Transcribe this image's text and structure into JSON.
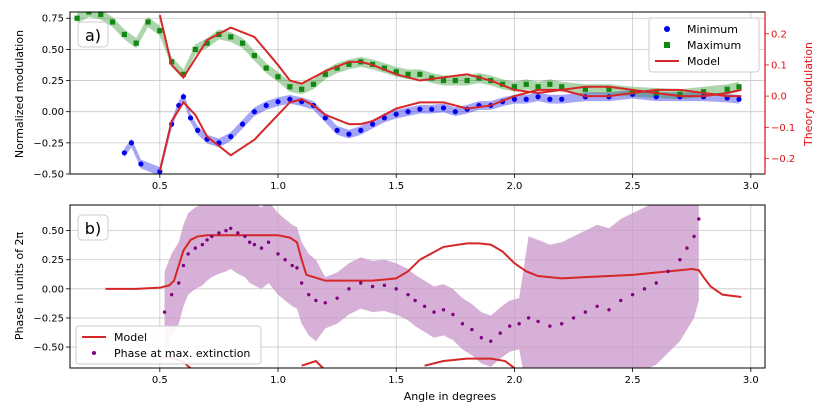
{
  "colors": {
    "minimum": "#0000ee",
    "maximum": "#118811",
    "model": "#d62728",
    "theory_axis": "#dd1111",
    "phase": "#800080",
    "phase_band": "#c896c8",
    "grid": "#c8c8c8"
  },
  "chart_data": [
    {
      "type": "scatter",
      "panel_label": "a)",
      "xlabel": "",
      "ylabel": "Normalized modulation",
      "y2label": "Theory modulation",
      "xlim": [
        0.12,
        3.06
      ],
      "ylim": [
        -0.5,
        0.8
      ],
      "y2lim": [
        -0.25,
        0.27
      ],
      "xticks": [
        "0.5",
        "1.0",
        "1.5",
        "2.0",
        "2.5",
        "3.0"
      ],
      "yticks": [
        "−0.50",
        "−0.25",
        "0.00",
        "0.25",
        "0.50",
        "0.75"
      ],
      "y2ticks": [
        "−0.2",
        "−0.1",
        "0.0",
        "0.1",
        "0.2"
      ],
      "grid": true,
      "legend_position": "top-right",
      "series": [
        {
          "name": "Minimum",
          "marker": "circle",
          "x": [
            0.35,
            0.38,
            0.42,
            0.5,
            0.55,
            0.58,
            0.6,
            0.63,
            0.66,
            0.7,
            0.75,
            0.8,
            0.85,
            0.9,
            0.95,
            1.0,
            1.05,
            1.1,
            1.15,
            1.2,
            1.25,
            1.3,
            1.35,
            1.4,
            1.45,
            1.5,
            1.55,
            1.6,
            1.65,
            1.7,
            1.75,
            1.8,
            1.85,
            1.9,
            1.95,
            2.0,
            2.05,
            2.1,
            2.15,
            2.2,
            2.3,
            2.4,
            2.5,
            2.6,
            2.7,
            2.8,
            2.9,
            2.95
          ],
          "y": [
            -0.33,
            -0.25,
            -0.42,
            -0.48,
            -0.1,
            0.05,
            0.12,
            -0.05,
            -0.15,
            -0.22,
            -0.25,
            -0.2,
            -0.1,
            0.0,
            0.05,
            0.08,
            0.1,
            0.08,
            0.05,
            -0.05,
            -0.15,
            -0.18,
            -0.15,
            -0.1,
            -0.05,
            -0.02,
            0.0,
            0.02,
            0.02,
            0.03,
            0.0,
            0.02,
            0.05,
            0.05,
            0.08,
            0.1,
            0.1,
            0.12,
            0.1,
            0.1,
            0.12,
            0.12,
            0.14,
            0.12,
            0.12,
            0.12,
            0.11,
            0.1
          ]
        },
        {
          "name": "Maximum",
          "marker": "square",
          "x": [
            0.15,
            0.2,
            0.25,
            0.3,
            0.35,
            0.4,
            0.45,
            0.5,
            0.55,
            0.6,
            0.65,
            0.7,
            0.75,
            0.8,
            0.85,
            0.9,
            0.95,
            1.0,
            1.05,
            1.1,
            1.15,
            1.2,
            1.25,
            1.3,
            1.35,
            1.4,
            1.45,
            1.5,
            1.55,
            1.6,
            1.65,
            1.7,
            1.75,
            1.8,
            1.85,
            1.9,
            1.95,
            2.0,
            2.05,
            2.1,
            2.15,
            2.2,
            2.3,
            2.4,
            2.5,
            2.6,
            2.7,
            2.8,
            2.9,
            2.95
          ],
          "y": [
            0.75,
            0.8,
            0.78,
            0.72,
            0.62,
            0.55,
            0.72,
            0.65,
            0.4,
            0.3,
            0.5,
            0.55,
            0.62,
            0.6,
            0.55,
            0.45,
            0.35,
            0.28,
            0.2,
            0.18,
            0.22,
            0.3,
            0.35,
            0.38,
            0.4,
            0.38,
            0.35,
            0.32,
            0.3,
            0.3,
            0.27,
            0.25,
            0.25,
            0.25,
            0.27,
            0.25,
            0.22,
            0.2,
            0.22,
            0.2,
            0.22,
            0.2,
            0.18,
            0.18,
            0.16,
            0.15,
            0.14,
            0.16,
            0.18,
            0.2
          ]
        },
        {
          "name": "Model",
          "style": "line",
          "axis": "y2",
          "x": [
            0.5,
            0.55,
            0.6,
            0.65,
            0.7,
            0.8,
            0.9,
            1.0,
            1.05,
            1.1,
            1.15,
            1.2,
            1.3,
            1.35,
            1.4,
            1.5,
            1.6,
            1.7,
            1.8,
            1.9,
            2.0,
            2.1,
            2.2,
            2.3,
            2.4,
            2.5,
            2.6,
            2.7,
            2.8,
            2.9,
            2.96
          ],
          "y": [
            0.26,
            0.1,
            0.06,
            0.12,
            0.18,
            0.22,
            0.19,
            0.1,
            0.05,
            0.04,
            0.06,
            0.08,
            0.11,
            0.11,
            0.1,
            0.07,
            0.05,
            0.06,
            0.07,
            0.05,
            0.02,
            0.01,
            0.02,
            0.03,
            0.03,
            0.02,
            0.01,
            0.0,
            0.0,
            0.01,
            0.02
          ]
        },
        {
          "name": "",
          "style": "line",
          "axis": "y2",
          "x": [
            0.5,
            0.55,
            0.6,
            0.65,
            0.7,
            0.8,
            0.9,
            1.0,
            1.05,
            1.1,
            1.15,
            1.2,
            1.3,
            1.35,
            1.4,
            1.5,
            1.6,
            1.7,
            1.8,
            1.9,
            2.0,
            2.1,
            2.2,
            2.3,
            2.4,
            2.5,
            2.6,
            2.7,
            2.8,
            2.9,
            2.96
          ],
          "y": [
            -0.24,
            -0.08,
            -0.02,
            -0.06,
            -0.13,
            -0.19,
            -0.14,
            -0.06,
            -0.02,
            -0.01,
            -0.03,
            -0.06,
            -0.09,
            -0.09,
            -0.08,
            -0.04,
            -0.02,
            -0.02,
            -0.04,
            -0.03,
            0.0,
            0.02,
            0.02,
            0.0,
            0.0,
            0.01,
            0.02,
            0.02,
            0.01,
            0.0,
            0.0
          ]
        }
      ]
    },
    {
      "type": "scatter",
      "panel_label": "b)",
      "xlabel": "Angle in degrees",
      "ylabel": "Phase in units of  2π",
      "xlim": [
        0.12,
        3.06
      ],
      "ylim": [
        -0.68,
        0.72
      ],
      "xticks": [
        "0.5",
        "1.0",
        "1.5",
        "2.0",
        "2.5",
        "3.0"
      ],
      "yticks": [
        "−0.50",
        "−0.25",
        "0.00",
        "0.25",
        "0.50"
      ],
      "grid": true,
      "legend_position": "bottom-left",
      "series": [
        {
          "name": "Model",
          "style": "line",
          "x": [
            0.27,
            0.4,
            0.5,
            0.54,
            0.56,
            0.58,
            0.6,
            0.63,
            0.66,
            0.7,
            0.8,
            0.9,
            1.0,
            1.05,
            1.08,
            1.1,
            1.12,
            1.2,
            1.3,
            1.4,
            1.5,
            1.55,
            1.6,
            1.7,
            1.8,
            1.85,
            1.9,
            1.95,
            2.0,
            2.05,
            2.1,
            2.2,
            2.3,
            2.4,
            2.5,
            2.6,
            2.7,
            2.75,
            2.78,
            2.8,
            2.83,
            2.88,
            2.96
          ],
          "y": [
            0.0,
            0.0,
            0.01,
            0.03,
            0.07,
            0.2,
            0.33,
            0.42,
            0.45,
            0.46,
            0.46,
            0.46,
            0.46,
            0.44,
            0.4,
            0.25,
            0.12,
            0.07,
            0.07,
            0.07,
            0.09,
            0.15,
            0.25,
            0.36,
            0.39,
            0.39,
            0.38,
            0.32,
            0.22,
            0.15,
            0.11,
            0.09,
            0.1,
            0.11,
            0.12,
            0.14,
            0.16,
            0.17,
            0.16,
            0.1,
            0.02,
            -0.05,
            -0.07
          ]
        },
        {
          "name": "",
          "style": "line",
          "x": [
            0.5,
            0.55,
            0.6,
            0.64
          ],
          "y": [
            -0.58,
            -0.59,
            -0.63,
            -0.7
          ]
        },
        {
          "name": "",
          "style": "line",
          "x": [
            1.1,
            1.16,
            1.2
          ],
          "y": [
            -0.66,
            -0.62,
            -0.7
          ]
        },
        {
          "name": "",
          "style": "line",
          "x": [
            1.62,
            1.7,
            1.8,
            1.9,
            1.96,
            2.0
          ],
          "y": [
            -0.66,
            -0.62,
            -0.6,
            -0.6,
            -0.62,
            -0.68
          ]
        },
        {
          "name": "Phase at max. extinction",
          "marker": "dot",
          "x": [
            0.52,
            0.55,
            0.58,
            0.6,
            0.62,
            0.65,
            0.68,
            0.7,
            0.72,
            0.75,
            0.78,
            0.8,
            0.83,
            0.86,
            0.88,
            0.9,
            0.93,
            0.96,
            1.0,
            1.03,
            1.06,
            1.08,
            1.1,
            1.13,
            1.16,
            1.2,
            1.25,
            1.3,
            1.35,
            1.4,
            1.45,
            1.5,
            1.55,
            1.58,
            1.62,
            1.66,
            1.7,
            1.74,
            1.78,
            1.82,
            1.86,
            1.9,
            1.94,
            1.98,
            2.02,
            2.06,
            2.1,
            2.15,
            2.2,
            2.25,
            2.3,
            2.35,
            2.4,
            2.45,
            2.5,
            2.55,
            2.6,
            2.65,
            2.7,
            2.73,
            2.76,
            2.78
          ],
          "y": [
            -0.2,
            -0.05,
            0.05,
            0.2,
            0.3,
            0.35,
            0.38,
            0.42,
            0.45,
            0.48,
            0.5,
            0.52,
            0.48,
            0.45,
            0.4,
            0.38,
            0.35,
            0.4,
            0.3,
            0.25,
            0.2,
            0.18,
            0.05,
            -0.05,
            -0.1,
            -0.12,
            -0.08,
            0.0,
            0.05,
            0.02,
            0.03,
            0.0,
            -0.05,
            -0.1,
            -0.15,
            -0.2,
            -0.18,
            -0.22,
            -0.3,
            -0.35,
            -0.42,
            -0.45,
            -0.38,
            -0.32,
            -0.3,
            -0.25,
            -0.28,
            -0.32,
            -0.3,
            -0.25,
            -0.2,
            -0.15,
            -0.18,
            -0.1,
            -0.05,
            0.0,
            0.05,
            0.15,
            0.25,
            0.35,
            0.45,
            0.6
          ]
        }
      ]
    }
  ]
}
